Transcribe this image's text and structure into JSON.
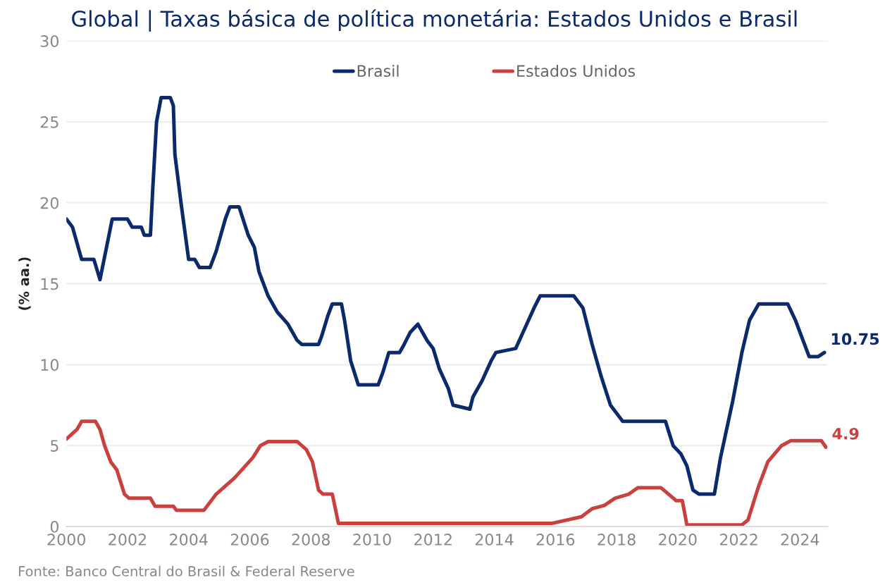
{
  "chart_data": {
    "type": "line",
    "title": "Global | Taxas básica de política monetária: Estados Unidos e Brasil",
    "ylabel": "(% aa.)",
    "xlim": [
      2000,
      2024.9
    ],
    "xticks": [
      2000,
      2002,
      2004,
      2006,
      2008,
      2010,
      2012,
      2014,
      2016,
      2018,
      2020,
      2022,
      2024
    ],
    "ylim": [
      0,
      30
    ],
    "yticks": [
      0,
      5,
      10,
      15,
      20,
      25,
      30
    ],
    "grid": "y",
    "legend": "top",
    "line_style": "solid",
    "series": [
      {
        "name": "Brasil",
        "color": "#0b2a6b",
        "x": [
          2000,
          2000.2,
          2000.5,
          2000.9,
          2001.1,
          2001.5,
          2002.0,
          2002.15,
          2002.45,
          2002.55,
          2002.75,
          2002.83,
          2002.95,
          2003.1,
          2003.4,
          2003.5,
          2003.55,
          2003.75,
          2004.0,
          2004.2,
          2004.35,
          2004.7,
          2004.9,
          2005.2,
          2005.35,
          2005.65,
          2005.95,
          2006.15,
          2006.3,
          2006.6,
          2006.9,
          2007.25,
          2007.55,
          2007.7,
          2008.25,
          2008.35,
          2008.55,
          2008.7,
          2009.0,
          2009.1,
          2009.3,
          2009.55,
          2010.2,
          2010.35,
          2010.55,
          2010.9,
          2011.05,
          2011.25,
          2011.5,
          2011.8,
          2012.0,
          2012.2,
          2012.5,
          2012.65,
          2013.2,
          2013.3,
          2013.6,
          2013.9,
          2014.05,
          2014.7,
          2015.0,
          2015.3,
          2015.5,
          2016.6,
          2016.9,
          2017.2,
          2017.5,
          2017.8,
          2018.2,
          2019.6,
          2019.85,
          2020.1,
          2020.3,
          2020.5,
          2020.7,
          2021.2,
          2021.4,
          2021.8,
          2022.1,
          2022.35,
          2022.65,
          2023.6,
          2023.85,
          2024.05,
          2024.3,
          2024.6,
          2024.8
        ],
        "values": [
          19,
          18.5,
          16.5,
          16.5,
          15.25,
          19,
          19,
          18.5,
          18.5,
          18,
          18,
          21,
          25,
          26.5,
          26.5,
          26,
          23,
          20,
          16.5,
          16.5,
          16,
          16,
          17,
          19,
          19.75,
          19.75,
          18,
          17.25,
          15.75,
          14.25,
          13.25,
          12.5,
          11.5,
          11.25,
          11.25,
          11.75,
          13,
          13.75,
          13.75,
          12.75,
          10.25,
          8.75,
          8.75,
          9.5,
          10.75,
          10.75,
          11.25,
          12,
          12.5,
          11.5,
          11,
          9.75,
          8.5,
          7.5,
          7.25,
          8,
          9,
          10.25,
          10.75,
          11,
          12.25,
          13.5,
          14.25,
          14.25,
          13.5,
          11.25,
          9.25,
          7.5,
          6.5,
          6.5,
          5,
          4.5,
          3.75,
          2.25,
          2,
          2,
          4.25,
          7.75,
          10.75,
          12.75,
          13.75,
          13.75,
          12.75,
          11.75,
          10.5,
          10.5,
          10.75
        ]
      },
      {
        "name": "Estados Unidos",
        "color": "#c9413f",
        "x": [
          2000,
          2000.35,
          2000.5,
          2000.95,
          2001.1,
          2001.25,
          2001.45,
          2001.65,
          2001.9,
          2002.05,
          2002.75,
          2002.9,
          2003.5,
          2003.6,
          2004.5,
          2004.9,
          2005.5,
          2006.1,
          2006.35,
          2006.6,
          2007.55,
          2007.85,
          2008.05,
          2008.25,
          2008.4,
          2008.7,
          2008.9,
          2015.9,
          2016.85,
          2017.2,
          2017.6,
          2017.95,
          2018.4,
          2018.7,
          2019.45,
          2019.7,
          2019.95,
          2020.15,
          2020.3,
          2022.1,
          2022.3,
          2022.65,
          2022.95,
          2023.4,
          2023.7,
          2024.7,
          2024.85
        ],
        "values": [
          5.4,
          6,
          6.5,
          6.5,
          6,
          5,
          4,
          3.5,
          2,
          1.75,
          1.75,
          1.25,
          1.25,
          1,
          1,
          2,
          3,
          4.25,
          5,
          5.25,
          5.25,
          4.75,
          4,
          2.25,
          2,
          2,
          0.2,
          0.2,
          0.6,
          1.1,
          1.3,
          1.75,
          2,
          2.4,
          2.4,
          2,
          1.6,
          1.6,
          0.1,
          0.1,
          0.4,
          2.5,
          4,
          5,
          5.3,
          5.3,
          4.9
        ]
      }
    ],
    "annotations": [
      {
        "text": "10.75",
        "x": 2024.8,
        "y": 10.75
      },
      {
        "text": "4.9",
        "x": 2024.85,
        "y": 4.9
      },
      "Fonte: Banco Central do Brasil & Federal Reserve"
    ]
  }
}
